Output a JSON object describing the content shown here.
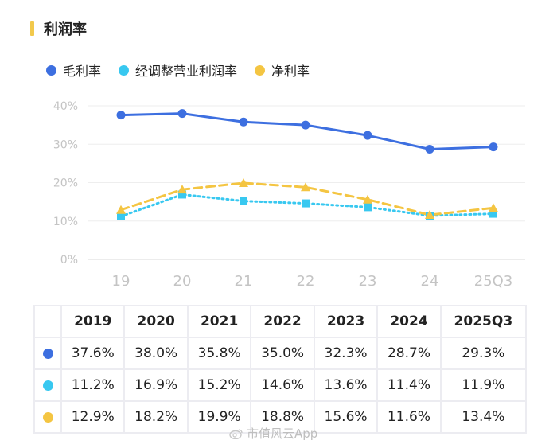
{
  "header": {
    "title": "利润率"
  },
  "legend": [
    {
      "label": "毛利率",
      "color": "#3d6fe0"
    },
    {
      "label": "经调整营业利润率",
      "color": "#38c8f0"
    },
    {
      "label": "净利率",
      "color": "#f4c542"
    }
  ],
  "chart_data": {
    "type": "line",
    "title": "利润率",
    "categories": [
      "19",
      "20",
      "21",
      "22",
      "23",
      "24",
      "25Q3"
    ],
    "y_ticks": [
      "0%",
      "10%",
      "20%",
      "30%",
      "40%"
    ],
    "ylim": [
      0,
      40
    ],
    "series": [
      {
        "name": "毛利率",
        "color": "#3d6fe0",
        "style": "solid",
        "marker": "circle",
        "values": [
          37.6,
          38.0,
          35.8,
          35.0,
          32.3,
          28.7,
          29.3
        ]
      },
      {
        "name": "经调整营业利润率",
        "color": "#38c8f0",
        "style": "dotted",
        "marker": "square",
        "values": [
          11.2,
          16.9,
          15.2,
          14.6,
          13.6,
          11.4,
          11.9
        ]
      },
      {
        "name": "净利率",
        "color": "#f4c542",
        "style": "dashed",
        "marker": "triangle",
        "values": [
          12.9,
          18.2,
          19.9,
          18.8,
          15.6,
          11.6,
          13.4
        ]
      }
    ]
  },
  "table": {
    "headers": [
      "2019",
      "2020",
      "2021",
      "2022",
      "2023",
      "2024",
      "2025Q3"
    ],
    "rows": [
      {
        "color": "#3d6fe0",
        "cells": [
          "37.6%",
          "38.0%",
          "35.8%",
          "35.0%",
          "32.3%",
          "28.7%",
          "29.3%"
        ]
      },
      {
        "color": "#38c8f0",
        "cells": [
          "11.2%",
          "16.9%",
          "15.2%",
          "14.6%",
          "13.6%",
          "11.4%",
          "11.9%"
        ]
      },
      {
        "color": "#f4c542",
        "cells": [
          "12.9%",
          "18.2%",
          "19.9%",
          "18.8%",
          "15.6%",
          "11.6%",
          "13.4%"
        ]
      }
    ]
  },
  "watermark": {
    "text": "市值风云App"
  }
}
